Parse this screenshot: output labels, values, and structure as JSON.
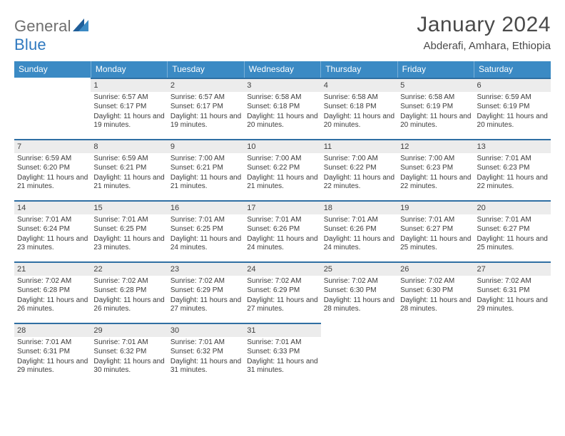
{
  "brand": {
    "part1": "General",
    "part2": "Blue"
  },
  "title": "January 2024",
  "location": "Abderafi, Amhara, Ethiopia",
  "colors": {
    "header_bg": "#3b8ac4",
    "header_border": "#2f6fa3",
    "daynum_bg": "#ececec",
    "text": "#3b3b3b",
    "brand_gray": "#6e6e6e",
    "brand_blue": "#2f79bf"
  },
  "day_headers": [
    "Sunday",
    "Monday",
    "Tuesday",
    "Wednesday",
    "Thursday",
    "Friday",
    "Saturday"
  ],
  "weeks": [
    [
      {
        "n": "",
        "sr": "",
        "ss": "",
        "dl": ""
      },
      {
        "n": "1",
        "sr": "Sunrise: 6:57 AM",
        "ss": "Sunset: 6:17 PM",
        "dl": "Daylight: 11 hours and 19 minutes."
      },
      {
        "n": "2",
        "sr": "Sunrise: 6:57 AM",
        "ss": "Sunset: 6:17 PM",
        "dl": "Daylight: 11 hours and 19 minutes."
      },
      {
        "n": "3",
        "sr": "Sunrise: 6:58 AM",
        "ss": "Sunset: 6:18 PM",
        "dl": "Daylight: 11 hours and 20 minutes."
      },
      {
        "n": "4",
        "sr": "Sunrise: 6:58 AM",
        "ss": "Sunset: 6:18 PM",
        "dl": "Daylight: 11 hours and 20 minutes."
      },
      {
        "n": "5",
        "sr": "Sunrise: 6:58 AM",
        "ss": "Sunset: 6:19 PM",
        "dl": "Daylight: 11 hours and 20 minutes."
      },
      {
        "n": "6",
        "sr": "Sunrise: 6:59 AM",
        "ss": "Sunset: 6:19 PM",
        "dl": "Daylight: 11 hours and 20 minutes."
      }
    ],
    [
      {
        "n": "7",
        "sr": "Sunrise: 6:59 AM",
        "ss": "Sunset: 6:20 PM",
        "dl": "Daylight: 11 hours and 21 minutes."
      },
      {
        "n": "8",
        "sr": "Sunrise: 6:59 AM",
        "ss": "Sunset: 6:21 PM",
        "dl": "Daylight: 11 hours and 21 minutes."
      },
      {
        "n": "9",
        "sr": "Sunrise: 7:00 AM",
        "ss": "Sunset: 6:21 PM",
        "dl": "Daylight: 11 hours and 21 minutes."
      },
      {
        "n": "10",
        "sr": "Sunrise: 7:00 AM",
        "ss": "Sunset: 6:22 PM",
        "dl": "Daylight: 11 hours and 21 minutes."
      },
      {
        "n": "11",
        "sr": "Sunrise: 7:00 AM",
        "ss": "Sunset: 6:22 PM",
        "dl": "Daylight: 11 hours and 22 minutes."
      },
      {
        "n": "12",
        "sr": "Sunrise: 7:00 AM",
        "ss": "Sunset: 6:23 PM",
        "dl": "Daylight: 11 hours and 22 minutes."
      },
      {
        "n": "13",
        "sr": "Sunrise: 7:01 AM",
        "ss": "Sunset: 6:23 PM",
        "dl": "Daylight: 11 hours and 22 minutes."
      }
    ],
    [
      {
        "n": "14",
        "sr": "Sunrise: 7:01 AM",
        "ss": "Sunset: 6:24 PM",
        "dl": "Daylight: 11 hours and 23 minutes."
      },
      {
        "n": "15",
        "sr": "Sunrise: 7:01 AM",
        "ss": "Sunset: 6:25 PM",
        "dl": "Daylight: 11 hours and 23 minutes."
      },
      {
        "n": "16",
        "sr": "Sunrise: 7:01 AM",
        "ss": "Sunset: 6:25 PM",
        "dl": "Daylight: 11 hours and 24 minutes."
      },
      {
        "n": "17",
        "sr": "Sunrise: 7:01 AM",
        "ss": "Sunset: 6:26 PM",
        "dl": "Daylight: 11 hours and 24 minutes."
      },
      {
        "n": "18",
        "sr": "Sunrise: 7:01 AM",
        "ss": "Sunset: 6:26 PM",
        "dl": "Daylight: 11 hours and 24 minutes."
      },
      {
        "n": "19",
        "sr": "Sunrise: 7:01 AM",
        "ss": "Sunset: 6:27 PM",
        "dl": "Daylight: 11 hours and 25 minutes."
      },
      {
        "n": "20",
        "sr": "Sunrise: 7:01 AM",
        "ss": "Sunset: 6:27 PM",
        "dl": "Daylight: 11 hours and 25 minutes."
      }
    ],
    [
      {
        "n": "21",
        "sr": "Sunrise: 7:02 AM",
        "ss": "Sunset: 6:28 PM",
        "dl": "Daylight: 11 hours and 26 minutes."
      },
      {
        "n": "22",
        "sr": "Sunrise: 7:02 AM",
        "ss": "Sunset: 6:28 PM",
        "dl": "Daylight: 11 hours and 26 minutes."
      },
      {
        "n": "23",
        "sr": "Sunrise: 7:02 AM",
        "ss": "Sunset: 6:29 PM",
        "dl": "Daylight: 11 hours and 27 minutes."
      },
      {
        "n": "24",
        "sr": "Sunrise: 7:02 AM",
        "ss": "Sunset: 6:29 PM",
        "dl": "Daylight: 11 hours and 27 minutes."
      },
      {
        "n": "25",
        "sr": "Sunrise: 7:02 AM",
        "ss": "Sunset: 6:30 PM",
        "dl": "Daylight: 11 hours and 28 minutes."
      },
      {
        "n": "26",
        "sr": "Sunrise: 7:02 AM",
        "ss": "Sunset: 6:30 PM",
        "dl": "Daylight: 11 hours and 28 minutes."
      },
      {
        "n": "27",
        "sr": "Sunrise: 7:02 AM",
        "ss": "Sunset: 6:31 PM",
        "dl": "Daylight: 11 hours and 29 minutes."
      }
    ],
    [
      {
        "n": "28",
        "sr": "Sunrise: 7:01 AM",
        "ss": "Sunset: 6:31 PM",
        "dl": "Daylight: 11 hours and 29 minutes."
      },
      {
        "n": "29",
        "sr": "Sunrise: 7:01 AM",
        "ss": "Sunset: 6:32 PM",
        "dl": "Daylight: 11 hours and 30 minutes."
      },
      {
        "n": "30",
        "sr": "Sunrise: 7:01 AM",
        "ss": "Sunset: 6:32 PM",
        "dl": "Daylight: 11 hours and 31 minutes."
      },
      {
        "n": "31",
        "sr": "Sunrise: 7:01 AM",
        "ss": "Sunset: 6:33 PM",
        "dl": "Daylight: 11 hours and 31 minutes."
      },
      {
        "n": "",
        "sr": "",
        "ss": "",
        "dl": ""
      },
      {
        "n": "",
        "sr": "",
        "ss": "",
        "dl": ""
      },
      {
        "n": "",
        "sr": "",
        "ss": "",
        "dl": ""
      }
    ]
  ]
}
